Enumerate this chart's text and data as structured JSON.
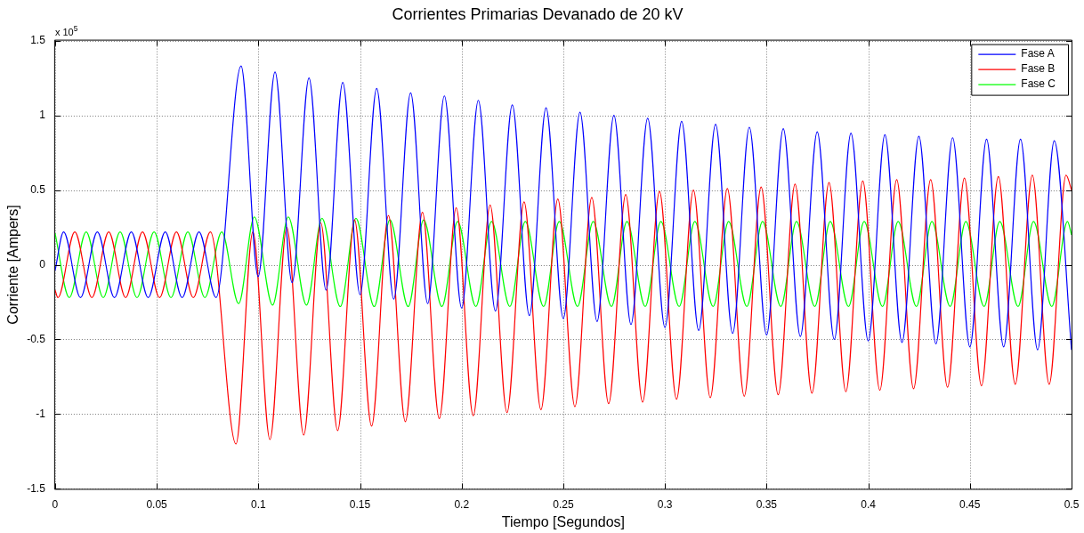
{
  "chart_data": {
    "type": "line",
    "title": "Corrientes Primarias Devanado de 20 kV",
    "xlabel": "Tiempo [Segundos]",
    "ylabel": "Corriente [Ampers]",
    "annotations": [
      "x 10$^{5}$"
    ],
    "xlim": [
      0,
      0.5
    ],
    "xticks": [
      0,
      0.05,
      0.1,
      0.15,
      0.2,
      0.25,
      0.3,
      0.35,
      0.4,
      0.45,
      0.5
    ],
    "ylim": [
      -1.5,
      1.5
    ],
    "yticks": [
      -1.5,
      -1,
      -0.5,
      0,
      0.5,
      1,
      1.5
    ],
    "grid": true,
    "legend": "top right",
    "line_style": "solid",
    "series": [
      {
        "name": "Fase A",
        "color": "#0000ff",
        "x": [
          0,
          0.0042,
          0.0125,
          0.0208,
          0.0292,
          0.0375,
          0.0458,
          0.0542,
          0.0625,
          0.0708,
          0.0792,
          0.0915,
          0.0999,
          0.1082,
          0.1166,
          0.1249,
          0.1333,
          0.1415,
          0.15,
          0.1582,
          0.1666,
          0.1749,
          0.1833,
          0.1915,
          0.2,
          0.2082,
          0.2166,
          0.2249,
          0.2333,
          0.2415,
          0.25,
          0.2582,
          0.2666,
          0.2749,
          0.2833,
          0.2915,
          0.3,
          0.3082,
          0.3166,
          0.3249,
          0.3333,
          0.3415,
          0.35,
          0.3582,
          0.3666,
          0.3749,
          0.3833,
          0.3915,
          0.4,
          0.4082,
          0.4166,
          0.4249,
          0.4333,
          0.4415,
          0.45,
          0.4582,
          0.4666,
          0.4749,
          0.4833,
          0.4915,
          0.5
        ],
        "values": [
          -0.04,
          0.22,
          -0.22,
          0.22,
          -0.22,
          0.22,
          -0.22,
          0.22,
          -0.22,
          0.22,
          -0.22,
          1.33,
          -0.08,
          1.29,
          -0.12,
          1.25,
          -0.17,
          1.22,
          -0.2,
          1.18,
          -0.23,
          1.15,
          -0.26,
          1.13,
          -0.29,
          1.1,
          -0.31,
          1.07,
          -0.34,
          1.05,
          -0.36,
          1.02,
          -0.38,
          1,
          -0.4,
          0.98,
          -0.42,
          0.96,
          -0.44,
          0.94,
          -0.46,
          0.92,
          -0.47,
          0.91,
          -0.48,
          0.89,
          -0.5,
          0.88,
          -0.51,
          0.87,
          -0.52,
          0.86,
          -0.53,
          0.85,
          -0.55,
          0.84,
          -0.55,
          0.84,
          -0.57,
          0.83,
          -0.57
        ]
      },
      {
        "name": "Fase B",
        "color": "#ff0000",
        "x": [
          0,
          0.0014,
          0.0097,
          0.0181,
          0.0264,
          0.0347,
          0.043,
          0.0514,
          0.0597,
          0.068,
          0.0764,
          0.089,
          0.0973,
          0.1057,
          0.114,
          0.1223,
          0.1307,
          0.139,
          0.1473,
          0.1557,
          0.164,
          0.1723,
          0.1807,
          0.189,
          0.1973,
          0.2057,
          0.214,
          0.2223,
          0.2307,
          0.239,
          0.2473,
          0.2557,
          0.264,
          0.2723,
          0.2807,
          0.289,
          0.2973,
          0.3057,
          0.314,
          0.3223,
          0.3307,
          0.339,
          0.3473,
          0.3557,
          0.364,
          0.3723,
          0.3807,
          0.389,
          0.3973,
          0.4057,
          0.414,
          0.4223,
          0.4307,
          0.439,
          0.4473,
          0.4557,
          0.464,
          0.4723,
          0.4807,
          0.489,
          0.4973,
          0.5
        ],
        "values": [
          -0.17,
          -0.22,
          0.22,
          -0.22,
          0.22,
          -0.22,
          0.22,
          -0.22,
          0.22,
          -0.22,
          0.22,
          -1.2,
          0.22,
          -1.17,
          0.25,
          -1.14,
          0.28,
          -1.11,
          0.3,
          -1.08,
          0.33,
          -1.05,
          0.35,
          -1.03,
          0.38,
          -1.01,
          0.4,
          -0.99,
          0.42,
          -0.97,
          0.44,
          -0.95,
          0.45,
          -0.93,
          0.47,
          -0.92,
          0.49,
          -0.9,
          0.5,
          -0.89,
          0.51,
          -0.88,
          0.52,
          -0.87,
          0.54,
          -0.86,
          0.55,
          -0.85,
          0.56,
          -0.84,
          0.57,
          -0.83,
          0.57,
          -0.82,
          0.58,
          -0.81,
          0.59,
          -0.8,
          0.6,
          -0.8,
          0.6,
          0.5
        ]
      },
      {
        "name": "Fase C",
        "color": "#00ff00",
        "x": [
          0,
          0.007,
          0.0153,
          0.0237,
          0.032,
          0.0403,
          0.0487,
          0.057,
          0.0653,
          0.0737,
          0.082,
          0.0903,
          0.098,
          0.107,
          0.1147,
          0.1237,
          0.1313,
          0.1403,
          0.148,
          0.157,
          0.1647,
          0.1737,
          0.1813,
          0.1903,
          0.198,
          0.207,
          0.2147,
          0.2237,
          0.2313,
          0.2403,
          0.248,
          0.257,
          0.2647,
          0.2737,
          0.2813,
          0.2903,
          0.298,
          0.307,
          0.3147,
          0.3237,
          0.3313,
          0.3403,
          0.348,
          0.357,
          0.3647,
          0.3737,
          0.3813,
          0.3903,
          0.398,
          0.407,
          0.4147,
          0.4237,
          0.4313,
          0.4403,
          0.448,
          0.457,
          0.4647,
          0.4737,
          0.4813,
          0.4903,
          0.498,
          0.5
        ],
        "values": [
          0.21,
          -0.22,
          0.22,
          -0.22,
          0.22,
          -0.22,
          0.22,
          -0.22,
          0.22,
          -0.22,
          0.22,
          -0.26,
          0.32,
          -0.27,
          0.32,
          -0.27,
          0.31,
          -0.28,
          0.31,
          -0.28,
          0.3,
          -0.28,
          0.3,
          -0.28,
          0.29,
          -0.28,
          0.29,
          -0.28,
          0.29,
          -0.28,
          0.29,
          -0.28,
          0.29,
          -0.28,
          0.29,
          -0.28,
          0.29,
          -0.28,
          0.29,
          -0.28,
          0.29,
          -0.28,
          0.29,
          -0.28,
          0.29,
          -0.28,
          0.29,
          -0.28,
          0.29,
          -0.28,
          0.29,
          -0.28,
          0.29,
          -0.28,
          0.29,
          -0.28,
          0.29,
          -0.28,
          0.29,
          -0.28,
          0.29,
          0.2
        ]
      }
    ]
  }
}
